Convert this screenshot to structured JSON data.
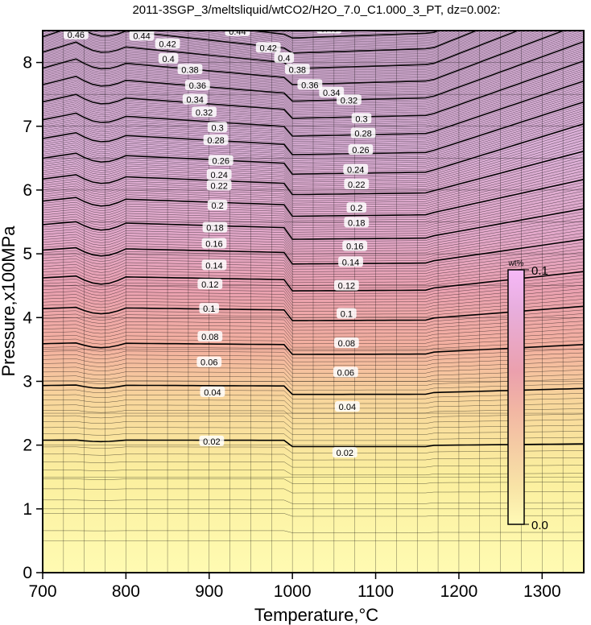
{
  "chart_data": {
    "type": "contour",
    "title": "2011-3SGP_3/meltsliquid/wtCO2/H2O_7.0_C1.000_3_PT, dz=0.002:",
    "xlabel": "Temperature,°C",
    "ylabel": "Pressure,x100MPa",
    "xlim": [
      700,
      1350
    ],
    "ylim": [
      0,
      8.5
    ],
    "x_ticks": [
      "700",
      "800",
      "900",
      "1000",
      "1100",
      "1200",
      "1300"
    ],
    "y_ticks": [
      "0",
      "1",
      "2",
      "3",
      "4",
      "5",
      "6",
      "7",
      "8"
    ],
    "grid": true,
    "contour_interval": 0.002,
    "major_contour_interval": 0.02,
    "contour_labels": [
      {
        "label": "0.02",
        "positions": [
          [
            903,
            2.06
          ],
          [
            1063,
            1.88
          ]
        ]
      },
      {
        "label": "0.04",
        "positions": [
          [
            904,
            2.83
          ],
          [
            1066,
            2.6
          ]
        ]
      },
      {
        "label": "0.06",
        "positions": [
          [
            900,
            3.3
          ],
          [
            1064,
            3.14
          ]
        ]
      },
      {
        "label": "0.08",
        "positions": [
          [
            901,
            3.7
          ],
          [
            1065,
            3.6
          ]
        ]
      },
      {
        "label": "0.1",
        "positions": [
          [
            900,
            4.14
          ],
          [
            1065,
            4.06
          ]
        ]
      },
      {
        "label": "0.12",
        "positions": [
          [
            901,
            4.52
          ],
          [
            1065,
            4.5
          ]
        ]
      },
      {
        "label": "0.14",
        "positions": [
          [
            906,
            4.82
          ],
          [
            1070,
            4.87
          ]
        ]
      },
      {
        "label": "0.16",
        "positions": [
          [
            906,
            5.16
          ],
          [
            1075,
            5.12
          ]
        ]
      },
      {
        "label": "0.18",
        "positions": [
          [
            907,
            5.41
          ],
          [
            1077,
            5.49
          ]
        ]
      },
      {
        "label": "0.2",
        "positions": [
          [
            910,
            5.76
          ],
          [
            1077,
            5.72
          ]
        ]
      },
      {
        "label": "0.22",
        "positions": [
          [
            912,
            6.07
          ],
          [
            1077,
            6.09
          ]
        ]
      },
      {
        "label": "0.24",
        "positions": [
          [
            912,
            6.24
          ],
          [
            1076,
            6.32
          ]
        ]
      },
      {
        "label": "0.26",
        "positions": [
          [
            914,
            6.46
          ],
          [
            1082,
            6.63
          ]
        ]
      },
      {
        "label": "0.28",
        "positions": [
          [
            908,
            6.78
          ],
          [
            1085,
            6.89
          ]
        ]
      },
      {
        "label": "0.3",
        "positions": [
          [
            910,
            6.98
          ],
          [
            1083,
            7.12
          ]
        ]
      },
      {
        "label": "0.32",
        "positions": [
          [
            894,
            7.22
          ],
          [
            1068,
            7.41
          ]
        ]
      },
      {
        "label": "0.34",
        "positions": [
          [
            883,
            7.42
          ],
          [
            1047,
            7.53
          ]
        ]
      },
      {
        "label": "0.36",
        "positions": [
          [
            886,
            7.64
          ],
          [
            1021,
            7.65
          ]
        ]
      },
      {
        "label": "0.38",
        "positions": [
          [
            877,
            7.89
          ],
          [
            1006,
            7.89
          ]
        ]
      },
      {
        "label": "0.4",
        "positions": [
          [
            851,
            8.06
          ],
          [
            990,
            8.07
          ]
        ]
      },
      {
        "label": "0.42",
        "positions": [
          [
            850,
            8.29
          ],
          [
            971,
            8.23
          ]
        ]
      },
      {
        "label": "0.44",
        "positions": [
          [
            819,
            8.42
          ],
          [
            934,
            8.49
          ]
        ]
      },
      {
        "label": "0.46",
        "positions": [
          [
            740,
            8.44
          ],
          [
            1044,
            8.53
          ]
        ]
      }
    ],
    "colorbar": {
      "unit": "wt%",
      "min_label": "0.0",
      "max_label": "0.1",
      "colors": [
        "#fffab6",
        "#f8e3a6",
        "#f2b6a3",
        "#eba0ad",
        "#e8aede",
        "#f6b8f8"
      ]
    }
  }
}
